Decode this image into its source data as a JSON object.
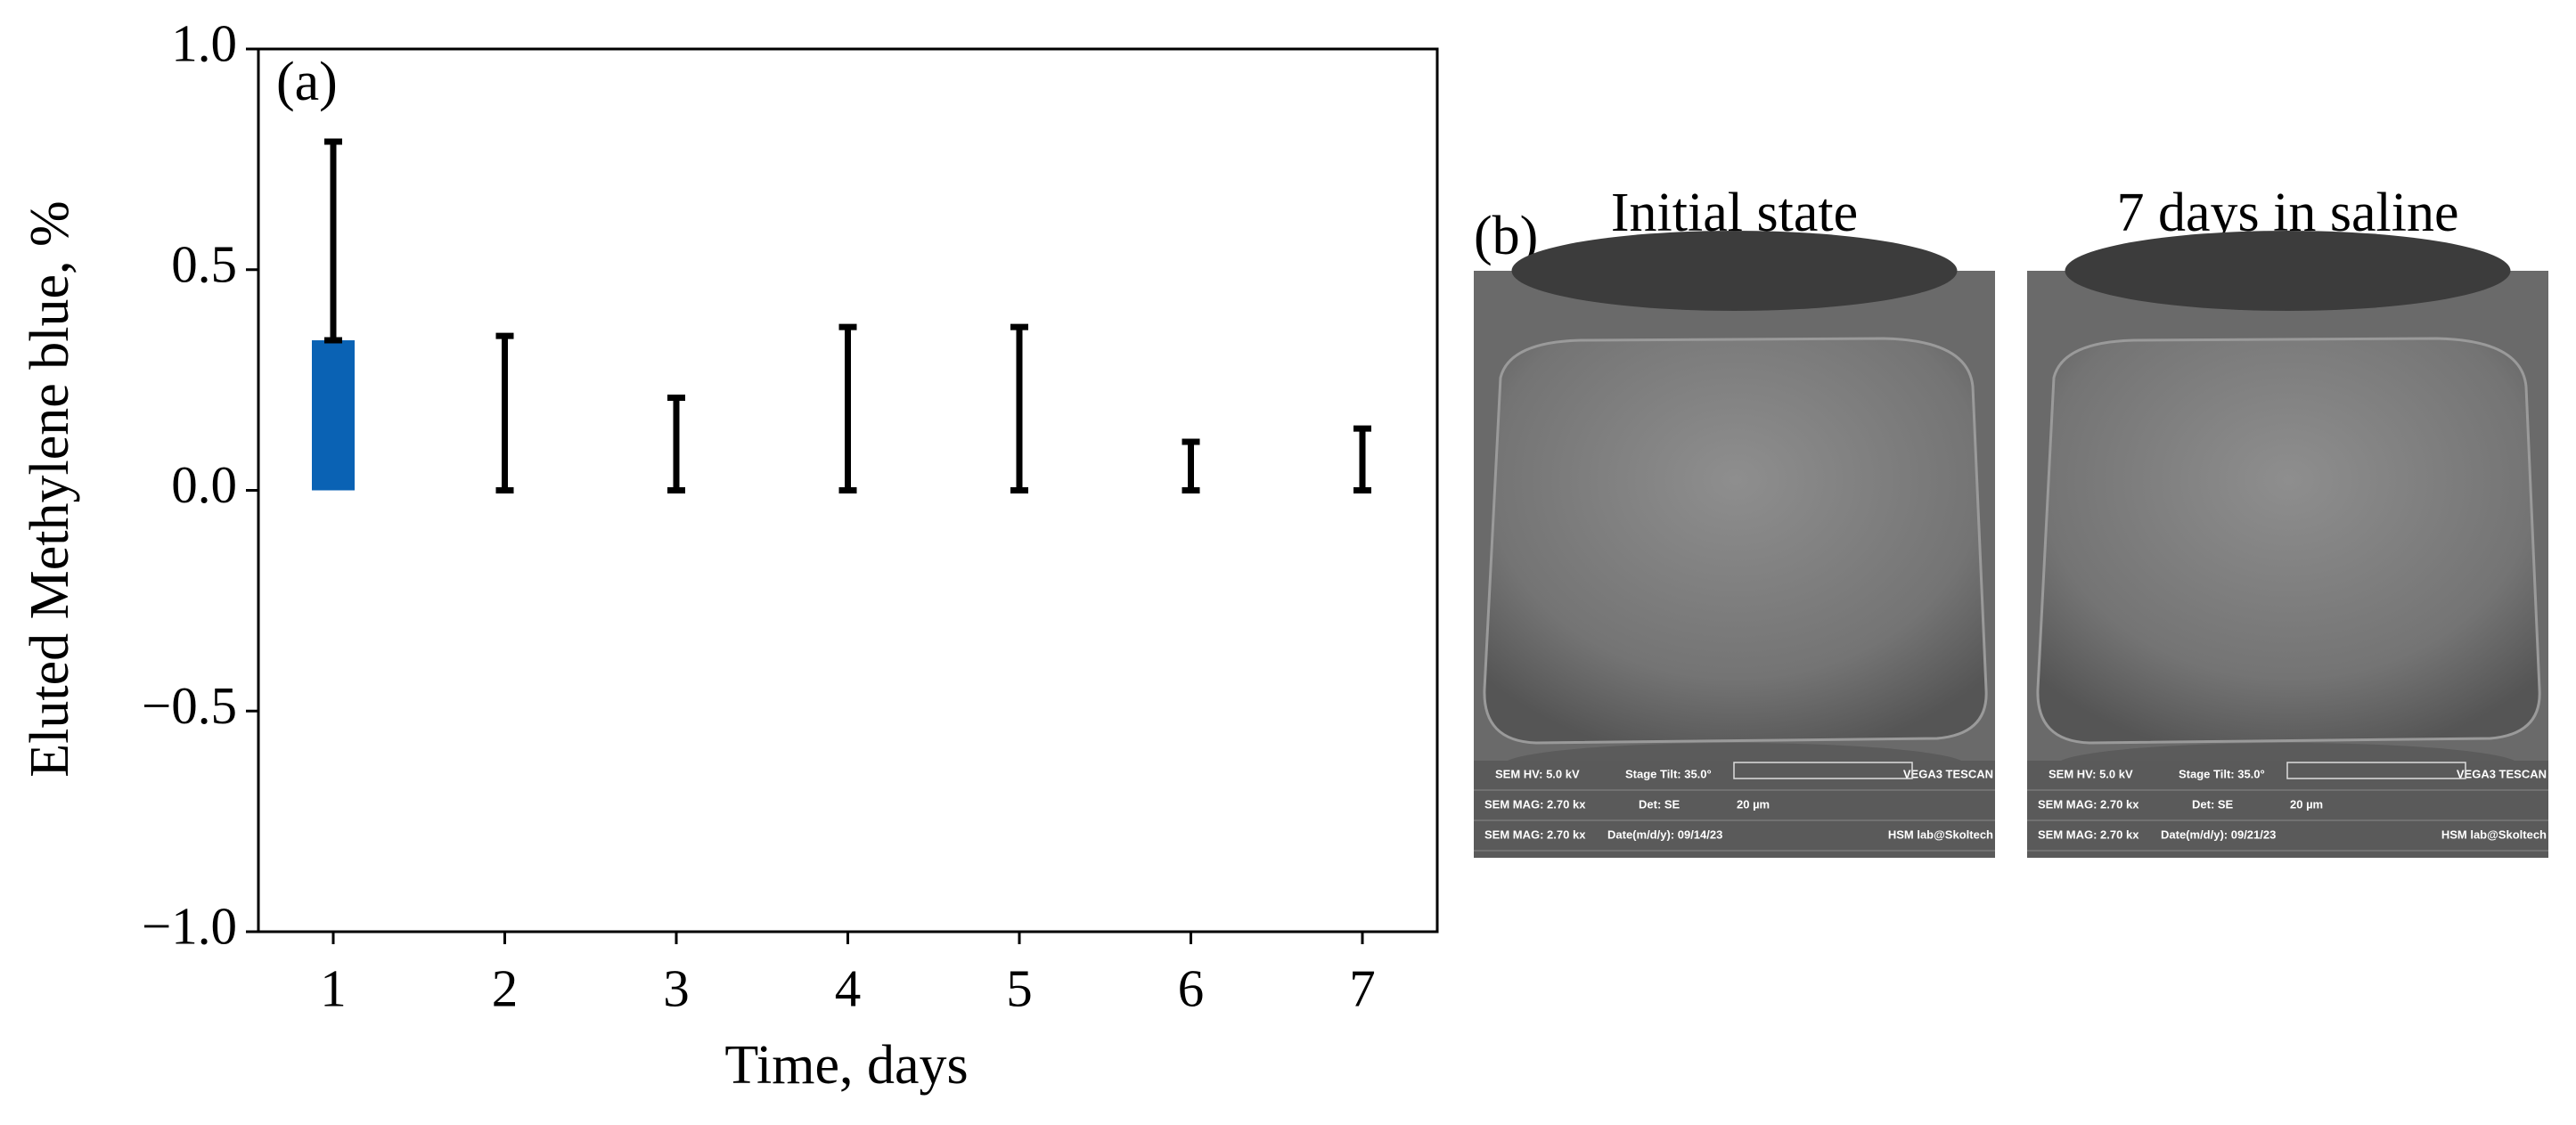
{
  "chart_data": {
    "type": "bar",
    "panel_label": "(a)",
    "xlabel": "Time, days",
    "ylabel": "Eluted Methylene blue, %",
    "categories": [
      "1",
      "2",
      "3",
      "4",
      "5",
      "6",
      "7"
    ],
    "values": [
      0.34,
      0,
      0,
      0,
      0,
      0,
      0
    ],
    "errors": [
      0.45,
      0.35,
      0.21,
      0.37,
      0.37,
      0.11,
      0.14
    ],
    "color": "#0a62b4",
    "error_color": "#000000",
    "ylim": [
      -1,
      1
    ],
    "yticks": [
      {
        "value": -1,
        "label": "−1.0"
      },
      {
        "value": -0.5,
        "label": "−0.5"
      },
      {
        "value": 0,
        "label": "0.0"
      },
      {
        "value": 0.5,
        "label": "0.5"
      },
      {
        "value": 1,
        "label": "1.0"
      }
    ]
  },
  "panel_b": {
    "label": "(b)",
    "images": [
      {
        "title": "Initial state",
        "info": [
          [
            "SEM HV: 5.0 kV",
            "Stage Tilt: 35.0°",
            "VEGA3 TESCAN"
          ],
          [
            "SEM MAG: 2.70 kx",
            "Det: SE",
            "20 µm"
          ],
          [
            "SEM MAG: 2.70 kx",
            "Date(m/d/y): 09/14/23",
            "HSM lab@Skoltech"
          ]
        ]
      },
      {
        "title": "7 days in saline",
        "info": [
          [
            "SEM HV: 5.0 kV",
            "Stage Tilt: 35.0°",
            "VEGA3 TESCAN"
          ],
          [
            "SEM MAG: 2.70 kx",
            "Det: SE",
            "20 µm"
          ],
          [
            "SEM MAG: 2.70 kx",
            "Date(m/d/y): 09/21/23",
            "HSM lab@Skoltech"
          ]
        ]
      }
    ]
  }
}
